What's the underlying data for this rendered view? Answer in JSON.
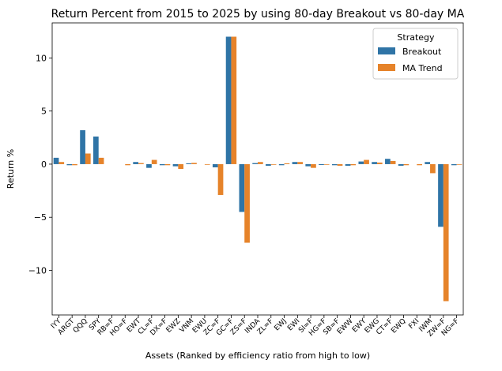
{
  "colors": {
    "breakout": "#2f74a6",
    "ma_trend": "#e6832a"
  },
  "chart_data": {
    "type": "bar",
    "title": "Return Percent from 2015 to 2025 by using 80-day Breakout vs 80-day MA",
    "xlabel": "Assets (Ranked by efficiency ratio from high to low)",
    "ylabel": "Return %",
    "ylim": [
      -14.2,
      13.3
    ],
    "yticks": [
      -10,
      -5,
      0,
      5,
      10
    ],
    "ytick_labels": [
      "−10",
      "−5",
      "0",
      "5",
      "10"
    ],
    "grid": false,
    "legend": {
      "title": "Strategy",
      "placement": "top-right"
    },
    "categories": [
      "IYY",
      "ARGT",
      "QQQ",
      "SPY",
      "RB=F",
      "HO=F",
      "EWT",
      "CL=F",
      "DX=F",
      "EWZ",
      "VNM",
      "EWU",
      "ZC=F",
      "GC=F",
      "ZS=F",
      "INDA",
      "ZL=F",
      "EWJ",
      "EWI",
      "SI=F",
      "HG=F",
      "SB=F",
      "EWW",
      "EWY",
      "EWG",
      "CT=F",
      "EWQ",
      "FXI",
      "IWM",
      "ZW=F",
      "NG=F"
    ],
    "series": [
      {
        "name": "Breakout",
        "values": [
          0.6,
          -0.1,
          3.2,
          2.6,
          0.0,
          0.0,
          0.2,
          -0.35,
          -0.1,
          -0.2,
          0.08,
          0.0,
          -0.3,
          12.0,
          -4.5,
          0.1,
          -0.15,
          -0.1,
          0.2,
          -0.2,
          -0.08,
          -0.1,
          -0.15,
          0.25,
          0.2,
          0.5,
          -0.15,
          0.0,
          0.2,
          -5.9,
          -0.1
        ]
      },
      {
        "name": "MA Trend",
        "values": [
          0.2,
          -0.1,
          1.0,
          0.6,
          0.0,
          -0.1,
          0.1,
          0.4,
          -0.1,
          -0.45,
          0.12,
          -0.05,
          -2.9,
          12.0,
          -7.4,
          0.2,
          -0.05,
          0.08,
          0.2,
          -0.35,
          -0.05,
          -0.15,
          -0.1,
          0.4,
          0.15,
          0.3,
          -0.1,
          -0.1,
          -0.85,
          -12.9,
          -0.05
        ]
      }
    ]
  }
}
